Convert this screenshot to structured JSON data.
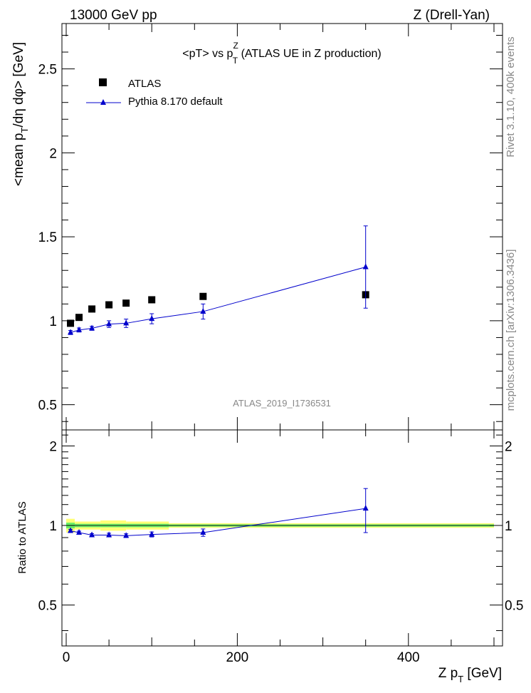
{
  "header": {
    "left": "13000 GeV pp",
    "right": "Z (Drell-Yan)"
  },
  "side_labels": {
    "rivet": "Rivet 3.1.10,  400k events",
    "mcplots": "mcplots.cern.ch [arXiv:1306.3436]"
  },
  "chart_data": [
    {
      "type": "scatter",
      "title": "<pT> vs p_T^Z (ATLAS UE in Z production)",
      "title_parts": {
        "pre": "<pT> vs p",
        "sup": "Z",
        "sub": "T",
        "post": " (ATLAS UE in Z production)"
      },
      "ylabel": "<mean p_T/dη dφ> [GeV]",
      "ylabel_parts": {
        "pre": "<mean p",
        "sub": "T",
        "post": "/dη dφ> [GeV]"
      },
      "watermark": "ATLAS_2019_I1736531",
      "xlim": [
        -5,
        510
      ],
      "ylim": [
        0.35,
        2.77
      ],
      "yticks": [
        0.5,
        1,
        1.5,
        2,
        2.5
      ],
      "ytick_labels": [
        "0.5",
        "1",
        "1.5",
        "2",
        "2.5"
      ],
      "legend_position": "top-left",
      "series": [
        {
          "name": "ATLAS",
          "marker": "square",
          "color": "#000000",
          "x": [
            5,
            15,
            30,
            50,
            70,
            100,
            160,
            350
          ],
          "y": [
            0.985,
            1.02,
            1.07,
            1.095,
            1.105,
            1.125,
            1.145,
            1.155
          ]
        },
        {
          "name": "Pythia 8.170 default",
          "marker": "triangle",
          "line": true,
          "color": "#0000cc",
          "x": [
            5,
            15,
            30,
            50,
            70,
            100,
            160,
            350
          ],
          "y": [
            0.93,
            0.945,
            0.955,
            0.98,
            0.985,
            1.012,
            1.055,
            1.32
          ],
          "yerr": [
            0.012,
            0.012,
            0.012,
            0.02,
            0.025,
            0.03,
            0.045,
            0.245
          ]
        }
      ]
    },
    {
      "type": "scatter",
      "ylabel": "Ratio to ATLAS",
      "xlabel": "Z p_T [GeV]",
      "xlabel_parts": {
        "pre": "Z p",
        "sub": "T",
        "post": " [GeV]"
      },
      "xlim": [
        -5,
        510
      ],
      "ylim": [
        0.35,
        2.3
      ],
      "yticks": [
        0.5,
        1,
        2
      ],
      "ytick_labels": [
        "0.5",
        "1",
        "2"
      ],
      "xticks": [
        0,
        200,
        400
      ],
      "xtick_labels": [
        "0",
        "200",
        "400"
      ],
      "reference_band": {
        "x": [
          0,
          500
        ],
        "y": 1.0,
        "color_inner": "#66ee66",
        "color_outer": "#ffff77"
      },
      "series": [
        {
          "name": "Pythia 8.170 default",
          "marker": "triangle",
          "line": true,
          "color": "#0000cc",
          "x": [
            5,
            15,
            30,
            50,
            70,
            100,
            160,
            350
          ],
          "y": [
            0.955,
            0.94,
            0.92,
            0.92,
            0.915,
            0.925,
            0.94,
            1.16
          ],
          "yerr": [
            0.012,
            0.012,
            0.012,
            0.015,
            0.015,
            0.02,
            0.03,
            0.22
          ]
        }
      ]
    }
  ]
}
